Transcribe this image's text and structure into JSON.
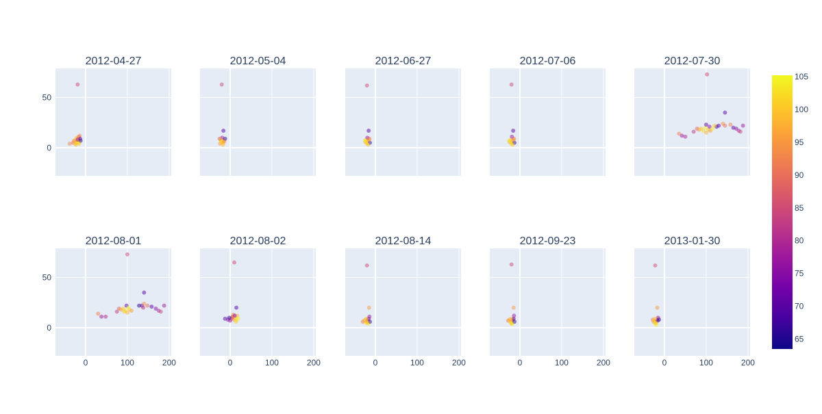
{
  "chart_data": {
    "type": "scatter",
    "layout": "small-multiples",
    "rows": 2,
    "cols": 5,
    "background_color": "#e5ecf6",
    "grid": true,
    "shared_axes": true,
    "xlim": [
      -72,
      205
    ],
    "ylim": [
      -28,
      79
    ],
    "x_ticks": [
      0,
      100,
      200
    ],
    "x_tick_labels": [
      "0",
      "100",
      "200"
    ],
    "y_ticks": [
      0,
      50
    ],
    "y_tick_labels": [
      "0",
      "50"
    ],
    "colorscale": [
      "#0d0887",
      "#46039f",
      "#7201a8",
      "#9c179e",
      "#bd3786",
      "#d8576b",
      "#ed7953",
      "#fb9f3a",
      "#fdca26",
      "#f0f921"
    ],
    "colorbar": {
      "range": [
        63.5,
        105.2
      ],
      "ticks": [
        65,
        70,
        75,
        80,
        85,
        90,
        95,
        100,
        105
      ],
      "tick_labels": [
        "65",
        "70",
        "75",
        "80",
        "85",
        "90",
        "95",
        "100",
        "105"
      ],
      "placement": "right"
    },
    "marker_opacity": 0.5,
    "panels": [
      {
        "title": "2012-04-27",
        "points": [
          [
            -19,
            63,
            85
          ],
          [
            -38,
            4,
            93
          ],
          [
            -30,
            5,
            90
          ],
          [
            -26,
            6,
            96
          ],
          [
            -24,
            8,
            100
          ],
          [
            -22,
            5,
            102
          ],
          [
            -20,
            7,
            98
          ],
          [
            -18,
            9,
            92
          ],
          [
            -16,
            11,
            88
          ],
          [
            -14,
            12,
            94
          ],
          [
            -13,
            9,
            70
          ],
          [
            -15,
            6,
            104
          ],
          [
            -21,
            10,
            97
          ],
          [
            -25,
            4,
            101
          ],
          [
            -17,
            5,
            103
          ],
          [
            -23,
            3,
            99
          ],
          [
            -19,
            8,
            78
          ],
          [
            -28,
            7,
            95
          ],
          [
            -12,
            7,
            66
          ],
          [
            -16,
            4,
            100
          ]
        ]
      },
      {
        "title": "2012-05-04",
        "points": [
          [
            -20,
            63,
            85
          ],
          [
            -16,
            17,
            70
          ],
          [
            -24,
            4,
            96
          ],
          [
            -22,
            6,
            100
          ],
          [
            -20,
            8,
            102
          ],
          [
            -18,
            5,
            98
          ],
          [
            -15,
            7,
            92
          ],
          [
            -12,
            9,
            66
          ],
          [
            -19,
            10,
            78
          ],
          [
            -23,
            8,
            104
          ],
          [
            -17,
            3,
            99
          ],
          [
            -21,
            6,
            101
          ],
          [
            -14,
            6,
            95
          ],
          [
            -25,
            9,
            88
          ]
        ]
      },
      {
        "title": "2012-06-27",
        "points": [
          [
            -20,
            62,
            85
          ],
          [
            -16,
            17,
            70
          ],
          [
            -24,
            6,
            96
          ],
          [
            -22,
            8,
            100
          ],
          [
            -20,
            5,
            102
          ],
          [
            -18,
            7,
            98
          ],
          [
            -14,
            9,
            92
          ],
          [
            -13,
            5,
            66
          ],
          [
            -19,
            10,
            78
          ],
          [
            -25,
            7,
            104
          ],
          [
            -17,
            3,
            99
          ],
          [
            -21,
            4,
            101
          ],
          [
            -15,
            8,
            95
          ]
        ]
      },
      {
        "title": "2012-07-06",
        "points": [
          [
            -20,
            63,
            85
          ],
          [
            -16,
            17,
            70
          ],
          [
            -25,
            6,
            96
          ],
          [
            -22,
            8,
            100
          ],
          [
            -20,
            5,
            102
          ],
          [
            -18,
            7,
            98
          ],
          [
            -14,
            9,
            92
          ],
          [
            -13,
            5,
            66
          ],
          [
            -19,
            11,
            78
          ],
          [
            -26,
            7,
            104
          ],
          [
            -17,
            3,
            99
          ],
          [
            -21,
            4,
            101
          ],
          [
            -15,
            8,
            95
          ]
        ]
      },
      {
        "title": "2012-07-30",
        "points": [
          [
            102,
            73,
            85
          ],
          [
            35,
            14,
            92
          ],
          [
            42,
            12,
            78
          ],
          [
            50,
            11,
            80
          ],
          [
            70,
            16,
            82
          ],
          [
            78,
            19,
            88
          ],
          [
            83,
            18,
            96
          ],
          [
            88,
            19,
            100
          ],
          [
            93,
            17,
            102
          ],
          [
            98,
            20,
            104
          ],
          [
            100,
            15,
            98
          ],
          [
            105,
            18,
            100
          ],
          [
            110,
            17,
            96
          ],
          [
            100,
            23,
            70
          ],
          [
            108,
            21,
            76
          ],
          [
            125,
            21,
            66
          ],
          [
            130,
            22,
            72
          ],
          [
            140,
            24,
            94
          ],
          [
            145,
            22,
            90
          ],
          [
            158,
            23,
            92
          ],
          [
            165,
            20,
            70
          ],
          [
            172,
            19,
            76
          ],
          [
            178,
            17,
            80
          ],
          [
            182,
            16,
            84
          ],
          [
            188,
            22,
            78
          ],
          [
            145,
            35,
            70
          ],
          [
            120,
            22,
            100
          ],
          [
            115,
            19,
            104
          ]
        ]
      },
      {
        "title": "2012-08-01",
        "points": [
          [
            100,
            73,
            85
          ],
          [
            30,
            14,
            92
          ],
          [
            38,
            11,
            78
          ],
          [
            48,
            11,
            80
          ],
          [
            75,
            16,
            82
          ],
          [
            80,
            19,
            88
          ],
          [
            85,
            18,
            96
          ],
          [
            90,
            19,
            100
          ],
          [
            95,
            17,
            102
          ],
          [
            98,
            22,
            70
          ],
          [
            100,
            15,
            98
          ],
          [
            105,
            18,
            100
          ],
          [
            110,
            17,
            96
          ],
          [
            128,
            22,
            66
          ],
          [
            135,
            22,
            72
          ],
          [
            140,
            24,
            94
          ],
          [
            148,
            22,
            90
          ],
          [
            158,
            21,
            70
          ],
          [
            168,
            19,
            76
          ],
          [
            175,
            17,
            80
          ],
          [
            180,
            16,
            84
          ],
          [
            188,
            22,
            78
          ],
          [
            140,
            35,
            70
          ],
          [
            138,
            20,
            82
          ],
          [
            102,
            20,
            104
          ],
          [
            92,
            16,
            101
          ]
        ]
      },
      {
        "title": "2012-08-02",
        "points": [
          [
            10,
            65,
            85
          ],
          [
            15,
            20,
            70
          ],
          [
            -12,
            9,
            70
          ],
          [
            -5,
            8,
            75
          ],
          [
            0,
            7,
            78
          ],
          [
            3,
            9,
            80
          ],
          [
            6,
            11,
            90
          ],
          [
            9,
            8,
            96
          ],
          [
            12,
            10,
            100
          ],
          [
            15,
            8,
            102
          ],
          [
            17,
            12,
            98
          ],
          [
            19,
            9,
            104
          ],
          [
            14,
            6,
            101
          ],
          [
            8,
            13,
            92
          ],
          [
            11,
            12,
            76
          ],
          [
            5,
            10,
            88
          ],
          [
            -2,
            10,
            66
          ]
        ]
      },
      {
        "title": "2012-08-14",
        "points": [
          [
            -20,
            62,
            85
          ],
          [
            -15,
            20,
            95
          ],
          [
            -30,
            6,
            92
          ],
          [
            -26,
            7,
            96
          ],
          [
            -24,
            8,
            100
          ],
          [
            -22,
            5,
            102
          ],
          [
            -20,
            6,
            98
          ],
          [
            -18,
            7,
            90
          ],
          [
            -16,
            9,
            70
          ],
          [
            -14,
            11,
            78
          ],
          [
            -17,
            4,
            104
          ],
          [
            -13,
            6,
            66
          ],
          [
            -21,
            9,
            99
          ],
          [
            -19,
            5,
            101
          ]
        ]
      },
      {
        "title": "2012-09-23",
        "points": [
          [
            -20,
            63,
            85
          ],
          [
            -15,
            20,
            95
          ],
          [
            -28,
            7,
            92
          ],
          [
            -25,
            8,
            96
          ],
          [
            -23,
            6,
            100
          ],
          [
            -21,
            5,
            102
          ],
          [
            -19,
            7,
            98
          ],
          [
            -17,
            8,
            90
          ],
          [
            -15,
            9,
            70
          ],
          [
            -14,
            12,
            78
          ],
          [
            -18,
            4,
            104
          ],
          [
            -13,
            6,
            66
          ],
          [
            -22,
            9,
            99
          ],
          [
            -20,
            4,
            101
          ]
        ]
      },
      {
        "title": "2013-01-30",
        "points": [
          [
            -22,
            62,
            85
          ],
          [
            -17,
            20,
            95
          ],
          [
            -28,
            8,
            92
          ],
          [
            -26,
            6,
            96
          ],
          [
            -24,
            7,
            100
          ],
          [
            -22,
            4,
            102
          ],
          [
            -20,
            6,
            98
          ],
          [
            -18,
            8,
            90
          ],
          [
            -16,
            7,
            70
          ],
          [
            -15,
            10,
            78
          ],
          [
            -19,
            3,
            104
          ],
          [
            -13,
            8,
            66
          ],
          [
            -23,
            9,
            99
          ],
          [
            -21,
            5,
            101
          ]
        ]
      }
    ]
  }
}
